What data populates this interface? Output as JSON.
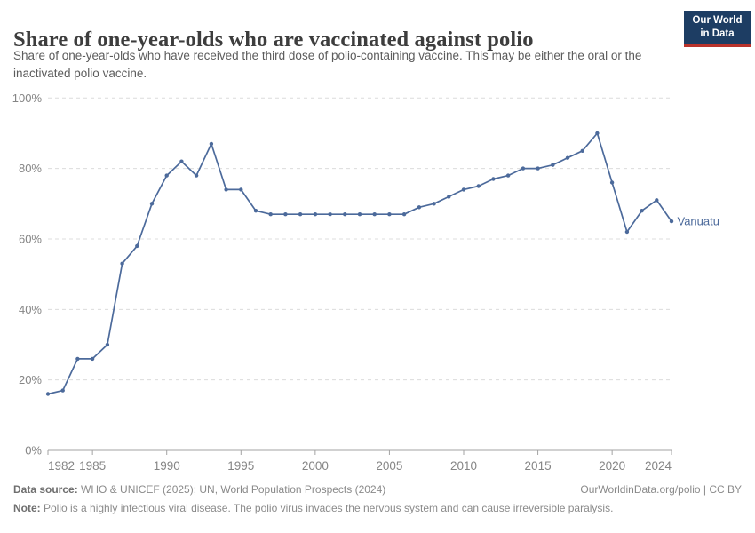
{
  "header": {
    "title": "Share of one-year-olds who are vaccinated against polio",
    "subtitle": "Share of one-year-olds who have received the third dose of polio-containing vaccine. This may be either the oral or the inactivated polio vaccine.",
    "logo": {
      "line1": "Our World",
      "line2": "in Data",
      "bg_color": "#1d3d63",
      "stripe_color": "#b9332b"
    }
  },
  "chart_data": {
    "type": "line",
    "title": "Share of one-year-olds who are vaccinated against polio",
    "xlabel": "",
    "ylabel": "",
    "xlim": [
      1982,
      2024
    ],
    "ylim": [
      0,
      100
    ],
    "xticks": [
      1982,
      1985,
      1990,
      1995,
      2000,
      2005,
      2010,
      2015,
      2020,
      2024
    ],
    "yticks": [
      0,
      20,
      40,
      60,
      80,
      100
    ],
    "ytick_suffix": "%",
    "grid": "horizontal-dashed",
    "legend_position": "end-of-line-label",
    "x": [
      1982,
      1983,
      1984,
      1985,
      1986,
      1987,
      1988,
      1989,
      1990,
      1991,
      1992,
      1993,
      1994,
      1995,
      1996,
      1997,
      1998,
      1999,
      2000,
      2001,
      2002,
      2003,
      2004,
      2005,
      2006,
      2007,
      2008,
      2009,
      2010,
      2011,
      2012,
      2013,
      2014,
      2015,
      2016,
      2017,
      2018,
      2019,
      2020,
      2021,
      2022,
      2023,
      2024
    ],
    "series": [
      {
        "name": "Vanuatu",
        "color": "#4C6A9B",
        "values": [
          16,
          17,
          26,
          26,
          30,
          53,
          58,
          70,
          78,
          82,
          78,
          87,
          74,
          74,
          68,
          67,
          67,
          67,
          67,
          67,
          67,
          67,
          67,
          67,
          67,
          69,
          70,
          72,
          74,
          75,
          77,
          78,
          80,
          80,
          81,
          83,
          85,
          90,
          76,
          62,
          68,
          71,
          65
        ]
      }
    ]
  },
  "footer": {
    "datasource_label": "Data source:",
    "datasource_text": " WHO & UNICEF (2025); UN, World Population Prospects (2024)",
    "license_text": "OurWorldinData.org/polio | CC BY",
    "note_label": "Note:",
    "note_text": " Polio is a highly infectious viral disease. The polio virus invades the nervous system and can cause irreversible paralysis."
  }
}
